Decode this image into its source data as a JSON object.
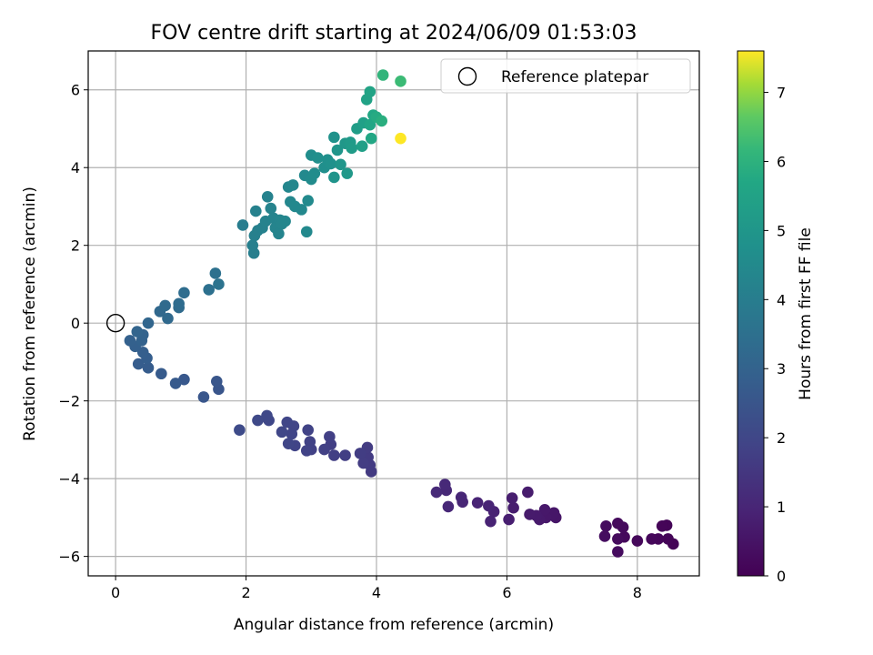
{
  "chart_data": {
    "type": "scatter",
    "title": "FOV centre drift starting at 2024/06/09 01:53:03",
    "xlabel": "Angular distance from reference (arcmin)",
    "ylabel": "Rotation from reference (arcmin)",
    "xlim": [
      -0.42,
      8.95
    ],
    "ylim": [
      -6.5,
      7.0
    ],
    "xticks": [
      0,
      2,
      4,
      6,
      8
    ],
    "yticks": [
      -6,
      -4,
      -2,
      0,
      2,
      4,
      6
    ],
    "grid": true,
    "legend": {
      "placement": "top-right",
      "entries": [
        "Reference platepar"
      ]
    },
    "reference_point": {
      "x": 0,
      "y": 0,
      "label": "Reference platepar"
    },
    "colorbar": {
      "label": "Hours from first FF file",
      "range": [
        0,
        7.6
      ],
      "ticks": [
        0,
        1,
        2,
        3,
        4,
        5,
        6,
        7
      ],
      "colormap": "viridis"
    },
    "points": [
      {
        "x": 8.55,
        "y": -5.68,
        "c": 0.05
      },
      {
        "x": 8.47,
        "y": -5.55,
        "c": 0.08
      },
      {
        "x": 8.45,
        "y": -5.2,
        "c": 0.1
      },
      {
        "x": 8.38,
        "y": -5.22,
        "c": 0.12
      },
      {
        "x": 8.32,
        "y": -5.55,
        "c": 0.14
      },
      {
        "x": 8.22,
        "y": -5.55,
        "c": 0.16
      },
      {
        "x": 8.0,
        "y": -5.6,
        "c": 0.18
      },
      {
        "x": 7.8,
        "y": -5.5,
        "c": 0.2
      },
      {
        "x": 7.78,
        "y": -5.25,
        "c": 0.22
      },
      {
        "x": 7.7,
        "y": -5.15,
        "c": 0.24
      },
      {
        "x": 7.7,
        "y": -5.55,
        "c": 0.26
      },
      {
        "x": 7.7,
        "y": -5.88,
        "c": 0.28
      },
      {
        "x": 7.52,
        "y": -5.22,
        "c": 0.3
      },
      {
        "x": 7.5,
        "y": -5.48,
        "c": 0.32
      },
      {
        "x": 6.75,
        "y": -5.0,
        "c": 0.55
      },
      {
        "x": 6.72,
        "y": -4.88,
        "c": 0.58
      },
      {
        "x": 6.6,
        "y": -5.0,
        "c": 0.6
      },
      {
        "x": 6.58,
        "y": -4.8,
        "c": 0.62
      },
      {
        "x": 6.5,
        "y": -5.05,
        "c": 0.65
      },
      {
        "x": 6.45,
        "y": -4.95,
        "c": 0.68
      },
      {
        "x": 6.35,
        "y": -4.92,
        "c": 0.7
      },
      {
        "x": 6.32,
        "y": -4.35,
        "c": 0.72
      },
      {
        "x": 6.1,
        "y": -4.75,
        "c": 0.75
      },
      {
        "x": 6.08,
        "y": -4.5,
        "c": 0.78
      },
      {
        "x": 6.03,
        "y": -5.05,
        "c": 0.8
      },
      {
        "x": 5.8,
        "y": -4.85,
        "c": 0.9
      },
      {
        "x": 5.75,
        "y": -5.1,
        "c": 0.92
      },
      {
        "x": 5.72,
        "y": -4.7,
        "c": 0.94
      },
      {
        "x": 5.55,
        "y": -4.62,
        "c": 0.96
      },
      {
        "x": 5.32,
        "y": -4.6,
        "c": 1.0
      },
      {
        "x": 5.3,
        "y": -4.48,
        "c": 1.02
      },
      {
        "x": 5.1,
        "y": -4.72,
        "c": 1.05
      },
      {
        "x": 5.07,
        "y": -4.3,
        "c": 1.08
      },
      {
        "x": 5.05,
        "y": -4.15,
        "c": 1.1
      },
      {
        "x": 4.92,
        "y": -4.35,
        "c": 1.12
      },
      {
        "x": 3.92,
        "y": -3.82,
        "c": 1.6
      },
      {
        "x": 3.9,
        "y": -3.65,
        "c": 1.62
      },
      {
        "x": 3.87,
        "y": -3.45,
        "c": 1.64
      },
      {
        "x": 3.86,
        "y": -3.2,
        "c": 1.66
      },
      {
        "x": 3.8,
        "y": -3.6,
        "c": 1.68
      },
      {
        "x": 3.75,
        "y": -3.35,
        "c": 1.7
      },
      {
        "x": 3.52,
        "y": -3.4,
        "c": 1.72
      },
      {
        "x": 3.35,
        "y": -3.4,
        "c": 1.74
      },
      {
        "x": 3.3,
        "y": -3.12,
        "c": 1.76
      },
      {
        "x": 3.28,
        "y": -2.92,
        "c": 1.78
      },
      {
        "x": 3.2,
        "y": -3.25,
        "c": 1.8
      },
      {
        "x": 3.0,
        "y": -3.25,
        "c": 1.82
      },
      {
        "x": 2.98,
        "y": -3.05,
        "c": 1.84
      },
      {
        "x": 2.95,
        "y": -2.75,
        "c": 1.86
      },
      {
        "x": 2.93,
        "y": -3.28,
        "c": 1.88
      },
      {
        "x": 2.75,
        "y": -3.15,
        "c": 1.9
      },
      {
        "x": 2.73,
        "y": -2.65,
        "c": 1.92
      },
      {
        "x": 2.7,
        "y": -2.85,
        "c": 1.94
      },
      {
        "x": 2.65,
        "y": -3.1,
        "c": 1.96
      },
      {
        "x": 2.63,
        "y": -2.55,
        "c": 1.98
      },
      {
        "x": 2.55,
        "y": -2.8,
        "c": 2.0
      },
      {
        "x": 2.35,
        "y": -2.5,
        "c": 2.02
      },
      {
        "x": 2.32,
        "y": -2.38,
        "c": 2.04
      },
      {
        "x": 2.18,
        "y": -2.5,
        "c": 2.06
      },
      {
        "x": 1.9,
        "y": -2.75,
        "c": 2.15
      },
      {
        "x": 1.58,
        "y": -1.7,
        "c": 2.5
      },
      {
        "x": 1.55,
        "y": -1.5,
        "c": 2.52
      },
      {
        "x": 1.35,
        "y": -1.9,
        "c": 2.55
      },
      {
        "x": 1.05,
        "y": -1.45,
        "c": 2.62
      },
      {
        "x": 0.92,
        "y": -1.55,
        "c": 2.66
      },
      {
        "x": 0.7,
        "y": -1.3,
        "c": 2.7
      },
      {
        "x": 0.5,
        "y": -1.15,
        "c": 2.74
      },
      {
        "x": 0.35,
        "y": -1.05,
        "c": 2.78
      },
      {
        "x": 0.48,
        "y": -0.9,
        "c": 2.82
      },
      {
        "x": 0.42,
        "y": -0.75,
        "c": 2.86
      },
      {
        "x": 0.3,
        "y": -0.6,
        "c": 2.9
      },
      {
        "x": 0.22,
        "y": -0.45,
        "c": 2.94
      },
      {
        "x": 0.4,
        "y": -0.45,
        "c": 2.98
      },
      {
        "x": 0.42,
        "y": -0.3,
        "c": 3.02
      },
      {
        "x": 0.33,
        "y": -0.22,
        "c": 3.06
      },
      {
        "x": 0.5,
        "y": 0.0,
        "c": 3.1
      },
      {
        "x": 0.68,
        "y": 0.3,
        "c": 3.2
      },
      {
        "x": 0.8,
        "y": 0.12,
        "c": 3.24
      },
      {
        "x": 0.76,
        "y": 0.45,
        "c": 3.28
      },
      {
        "x": 0.97,
        "y": 0.4,
        "c": 3.32
      },
      {
        "x": 0.97,
        "y": 0.5,
        "c": 3.36
      },
      {
        "x": 1.05,
        "y": 0.78,
        "c": 3.4
      },
      {
        "x": 1.43,
        "y": 0.86,
        "c": 3.5
      },
      {
        "x": 1.53,
        "y": 1.28,
        "c": 3.55
      },
      {
        "x": 1.58,
        "y": 1.0,
        "c": 3.6
      },
      {
        "x": 1.95,
        "y": 2.52,
        "c": 4.0
      },
      {
        "x": 2.12,
        "y": 1.8,
        "c": 4.05
      },
      {
        "x": 2.1,
        "y": 2.0,
        "c": 4.08
      },
      {
        "x": 2.13,
        "y": 2.25,
        "c": 4.1
      },
      {
        "x": 2.18,
        "y": 2.38,
        "c": 4.12
      },
      {
        "x": 2.15,
        "y": 2.88,
        "c": 4.14
      },
      {
        "x": 2.25,
        "y": 2.45,
        "c": 4.16
      },
      {
        "x": 2.3,
        "y": 2.62,
        "c": 4.18
      },
      {
        "x": 2.33,
        "y": 3.25,
        "c": 4.2
      },
      {
        "x": 2.38,
        "y": 2.95,
        "c": 4.22
      },
      {
        "x": 2.42,
        "y": 2.7,
        "c": 4.24
      },
      {
        "x": 2.45,
        "y": 2.45,
        "c": 4.26
      },
      {
        "x": 2.5,
        "y": 2.3,
        "c": 4.28
      },
      {
        "x": 2.52,
        "y": 2.65,
        "c": 4.3
      },
      {
        "x": 2.55,
        "y": 2.55,
        "c": 4.32
      },
      {
        "x": 2.6,
        "y": 2.62,
        "c": 4.34
      },
      {
        "x": 2.65,
        "y": 3.5,
        "c": 4.36
      },
      {
        "x": 2.68,
        "y": 3.12,
        "c": 4.38
      },
      {
        "x": 2.72,
        "y": 3.55,
        "c": 4.4
      },
      {
        "x": 2.75,
        "y": 3.0,
        "c": 4.42
      },
      {
        "x": 2.85,
        "y": 2.92,
        "c": 4.44
      },
      {
        "x": 2.9,
        "y": 3.8,
        "c": 4.46
      },
      {
        "x": 2.93,
        "y": 2.35,
        "c": 4.48
      },
      {
        "x": 2.95,
        "y": 3.15,
        "c": 4.5
      },
      {
        "x": 3.0,
        "y": 3.7,
        "c": 4.55
      },
      {
        "x": 3.05,
        "y": 3.85,
        "c": 4.6
      },
      {
        "x": 3.0,
        "y": 4.32,
        "c": 4.65
      },
      {
        "x": 3.1,
        "y": 4.25,
        "c": 4.7
      },
      {
        "x": 3.2,
        "y": 4.0,
        "c": 4.72
      },
      {
        "x": 3.25,
        "y": 4.2,
        "c": 4.76
      },
      {
        "x": 3.3,
        "y": 4.1,
        "c": 4.8
      },
      {
        "x": 3.35,
        "y": 4.78,
        "c": 4.85
      },
      {
        "x": 3.35,
        "y": 3.75,
        "c": 4.9
      },
      {
        "x": 3.4,
        "y": 4.45,
        "c": 4.95
      },
      {
        "x": 3.45,
        "y": 4.08,
        "c": 5.0
      },
      {
        "x": 3.52,
        "y": 4.62,
        "c": 5.05
      },
      {
        "x": 3.55,
        "y": 3.85,
        "c": 5.1
      },
      {
        "x": 3.6,
        "y": 4.65,
        "c": 5.15
      },
      {
        "x": 3.62,
        "y": 4.5,
        "c": 5.2
      },
      {
        "x": 3.7,
        "y": 5.0,
        "c": 5.3
      },
      {
        "x": 3.78,
        "y": 4.55,
        "c": 5.35
      },
      {
        "x": 3.8,
        "y": 5.15,
        "c": 5.4
      },
      {
        "x": 3.85,
        "y": 5.75,
        "c": 5.5
      },
      {
        "x": 3.9,
        "y": 5.95,
        "c": 5.55
      },
      {
        "x": 3.9,
        "y": 5.1,
        "c": 5.6
      },
      {
        "x": 3.92,
        "y": 4.75,
        "c": 5.65
      },
      {
        "x": 3.95,
        "y": 5.35,
        "c": 5.7
      },
      {
        "x": 4.0,
        "y": 5.3,
        "c": 5.8
      },
      {
        "x": 4.08,
        "y": 5.2,
        "c": 5.9
      },
      {
        "x": 4.1,
        "y": 6.38,
        "c": 6.1
      },
      {
        "x": 4.37,
        "y": 6.22,
        "c": 6.25
      },
      {
        "x": 4.37,
        "y": 4.75,
        "c": 7.6
      }
    ]
  }
}
